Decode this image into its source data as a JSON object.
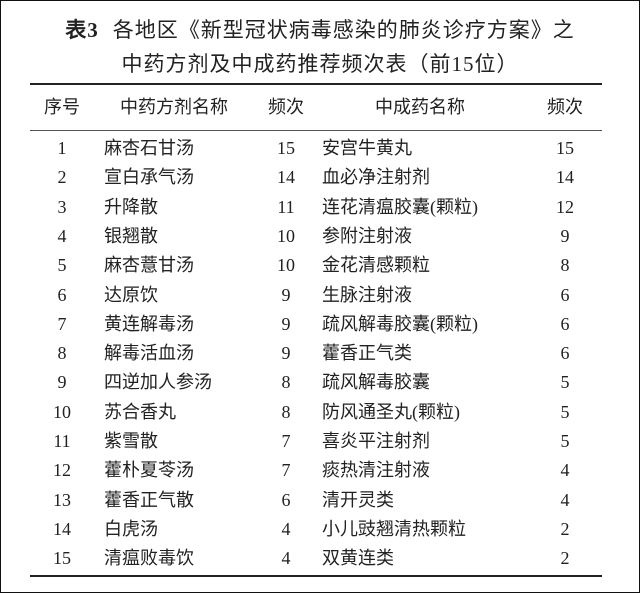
{
  "title": {
    "label": "表3",
    "line1": "各地区《新型冠状病毒感染的肺炎诊疗方案》之",
    "line2": "中药方剂及中成药推荐频次表（前15位）"
  },
  "headers": [
    "序号",
    "中药方剂名称",
    "频次",
    "中成药名称",
    "频次"
  ],
  "rows": [
    [
      "1",
      "麻杏石甘汤",
      "15",
      "安宫牛黄丸",
      "15"
    ],
    [
      "2",
      "宣白承气汤",
      "14",
      "血必净注射剂",
      "14"
    ],
    [
      "3",
      "升降散",
      "11",
      "连花清瘟胶囊(颗粒)",
      "12"
    ],
    [
      "4",
      "银翘散",
      "10",
      "参附注射液",
      "9"
    ],
    [
      "5",
      "麻杏薏甘汤",
      "10",
      "金花清感颗粒",
      "8"
    ],
    [
      "6",
      "达原饮",
      "9",
      "生脉注射液",
      "6"
    ],
    [
      "7",
      "黄连解毒汤",
      "9",
      "疏风解毒胶囊(颗粒)",
      "6"
    ],
    [
      "8",
      "解毒活血汤",
      "9",
      "藿香正气类",
      "6"
    ],
    [
      "9",
      "四逆加人参汤",
      "8",
      "疏风解毒胶囊",
      "5"
    ],
    [
      "10",
      "苏合香丸",
      "8",
      "防风通圣丸(颗粒)",
      "5"
    ],
    [
      "11",
      "紫雪散",
      "7",
      "喜炎平注射剂",
      "5"
    ],
    [
      "12",
      "藿朴夏苓汤",
      "7",
      "痰热清注射液",
      "4"
    ],
    [
      "13",
      "藿香正气散",
      "6",
      "清开灵类",
      "4"
    ],
    [
      "14",
      "白虎汤",
      "4",
      "小儿豉翘清热颗粒",
      "2"
    ],
    [
      "15",
      "清瘟败毒饮",
      "4",
      "双黄连类",
      "2"
    ]
  ]
}
